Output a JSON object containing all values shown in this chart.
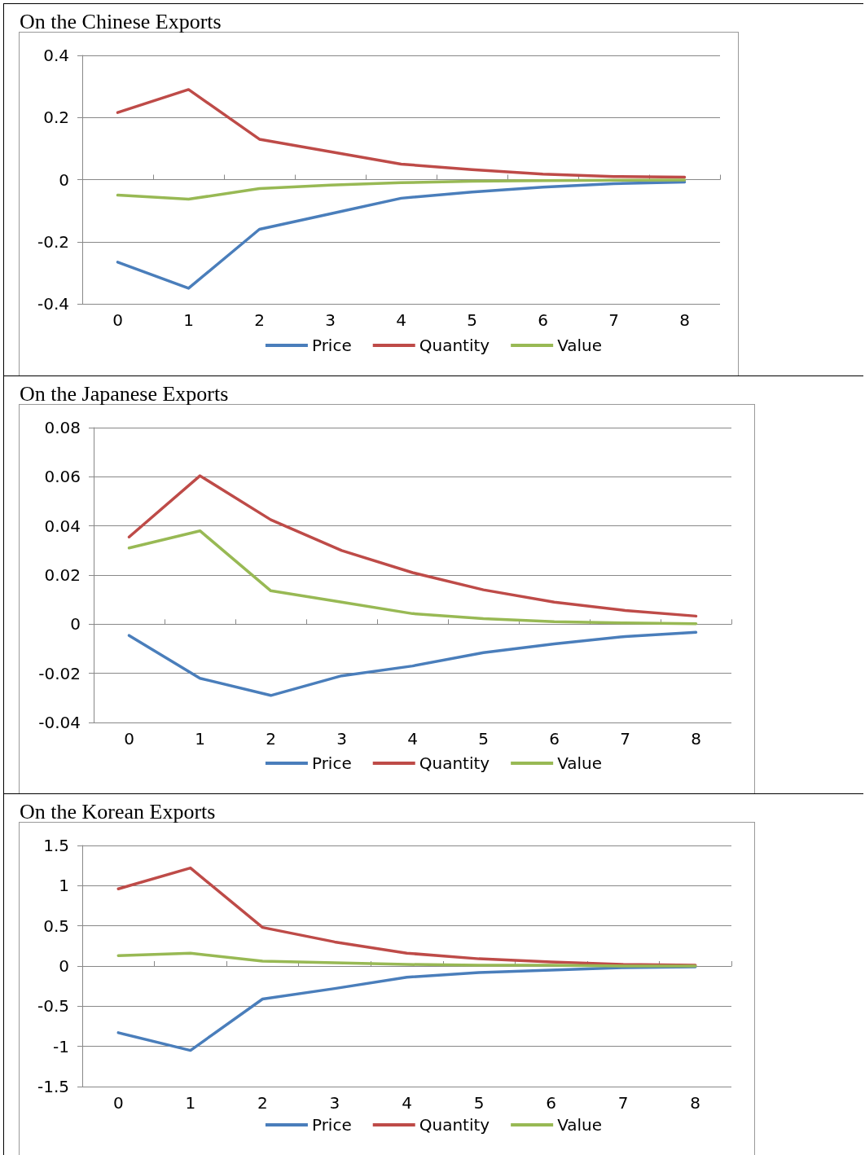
{
  "chart_data": [
    {
      "type": "line",
      "title": "On the Chinese Exports",
      "categories": [
        "0",
        "1",
        "2",
        "3",
        "4",
        "5",
        "6",
        "7",
        "8"
      ],
      "ylim": [
        -0.4,
        0.4
      ],
      "yticks": [
        -0.4,
        -0.2,
        0,
        0.2,
        0.4
      ],
      "grid": "y",
      "legend": "bottom",
      "marker": "none",
      "series": [
        {
          "name": "Price",
          "color": "#4a7ebb",
          "values": [
            -0.266,
            -0.35,
            -0.16,
            -0.11,
            -0.06,
            -0.04,
            -0.024,
            -0.013,
            -0.008
          ]
        },
        {
          "name": "Quantity",
          "color": "#be4b48",
          "values": [
            0.216,
            0.29,
            0.13,
            0.09,
            0.05,
            0.032,
            0.018,
            0.01,
            0.008
          ]
        },
        {
          "name": "Value",
          "color": "#98b954",
          "values": [
            -0.05,
            -0.063,
            -0.029,
            -0.018,
            -0.01,
            -0.005,
            -0.003,
            -0.002,
            -0.001
          ]
        }
      ]
    },
    {
      "type": "line",
      "title": "On the Japanese Exports",
      "categories": [
        "0",
        "1",
        "2",
        "3",
        "4",
        "5",
        "6",
        "7",
        "8"
      ],
      "ylim": [
        -0.04,
        0.08
      ],
      "yticks": [
        -0.04,
        -0.02,
        0,
        0.02,
        0.04,
        0.06,
        0.08
      ],
      "grid": "y",
      "legend": "bottom",
      "marker": "none",
      "series": [
        {
          "name": "Price",
          "color": "#4a7ebb",
          "values": [
            -0.0046,
            -0.022,
            -0.029,
            -0.021,
            -0.017,
            -0.0116,
            -0.008,
            -0.005,
            -0.0033
          ]
        },
        {
          "name": "Quantity",
          "color": "#be4b48",
          "values": [
            0.0355,
            0.0604,
            0.0425,
            0.03,
            0.021,
            0.014,
            0.009,
            0.0056,
            0.0033
          ]
        },
        {
          "name": "Value",
          "color": "#98b954",
          "values": [
            0.031,
            0.038,
            0.0136,
            0.009,
            0.0043,
            0.0023,
            0.001,
            0.0005,
            0.0002
          ]
        }
      ]
    },
    {
      "type": "line",
      "title": "On the Korean Exports",
      "categories": [
        "0",
        "1",
        "2",
        "3",
        "4",
        "5",
        "6",
        "7",
        "8"
      ],
      "ylim": [
        -1.5,
        1.5
      ],
      "yticks": [
        -1.5,
        -1,
        -0.5,
        0,
        0.5,
        1,
        1.5
      ],
      "grid": "y",
      "legend": "bottom",
      "marker": "none",
      "series": [
        {
          "name": "Price",
          "color": "#4a7ebb",
          "values": [
            -0.83,
            -1.05,
            -0.41,
            -0.28,
            -0.14,
            -0.08,
            -0.05,
            -0.02,
            -0.01
          ]
        },
        {
          "name": "Quantity",
          "color": "#be4b48",
          "values": [
            0.96,
            1.22,
            0.48,
            0.3,
            0.16,
            0.09,
            0.05,
            0.02,
            0.01
          ]
        },
        {
          "name": "Value",
          "color": "#98b954",
          "values": [
            0.13,
            0.16,
            0.06,
            0.04,
            0.02,
            0.01,
            0.01,
            0,
            0
          ]
        }
      ]
    }
  ]
}
